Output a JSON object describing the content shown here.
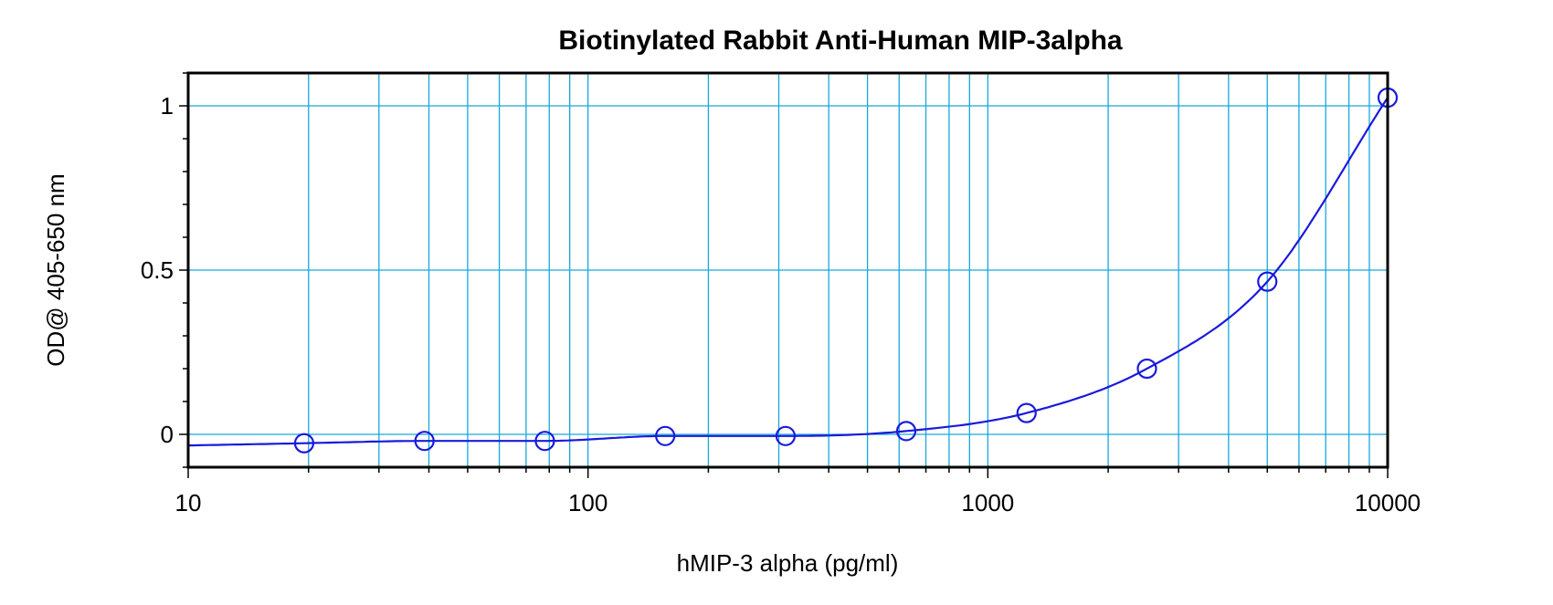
{
  "chart_data": {
    "type": "scatter",
    "title": "Biotinylated Rabbit Anti-Human MIP-3alpha",
    "xlabel": "hMIP-3 alpha (pg/ml)",
    "ylabel": "OD@ 405-650 nm",
    "x_scale": "log",
    "xlim": [
      10,
      10000
    ],
    "ylim": [
      -0.1,
      1.1
    ],
    "x_ticks": [
      10,
      100,
      1000,
      10000
    ],
    "x_tick_labels": [
      "10",
      "100",
      "1000",
      "10000"
    ],
    "y_ticks": [
      0,
      0.5,
      1
    ],
    "y_tick_labels": [
      "0",
      "0.5",
      "1"
    ],
    "grid": true,
    "series": [
      {
        "kind": "points",
        "x": [
          19.5,
          39,
          78,
          156,
          312,
          625,
          1250,
          2500,
          5000,
          10000
        ],
        "y": [
          -0.027,
          -0.02,
          -0.02,
          -0.005,
          -0.005,
          0.01,
          0.065,
          0.2,
          0.465,
          1.025
        ]
      },
      {
        "kind": "fit-curve"
      }
    ],
    "colors": {
      "series": "#1a1adc",
      "grid": "#19a7dc",
      "axes": "#000000"
    }
  }
}
